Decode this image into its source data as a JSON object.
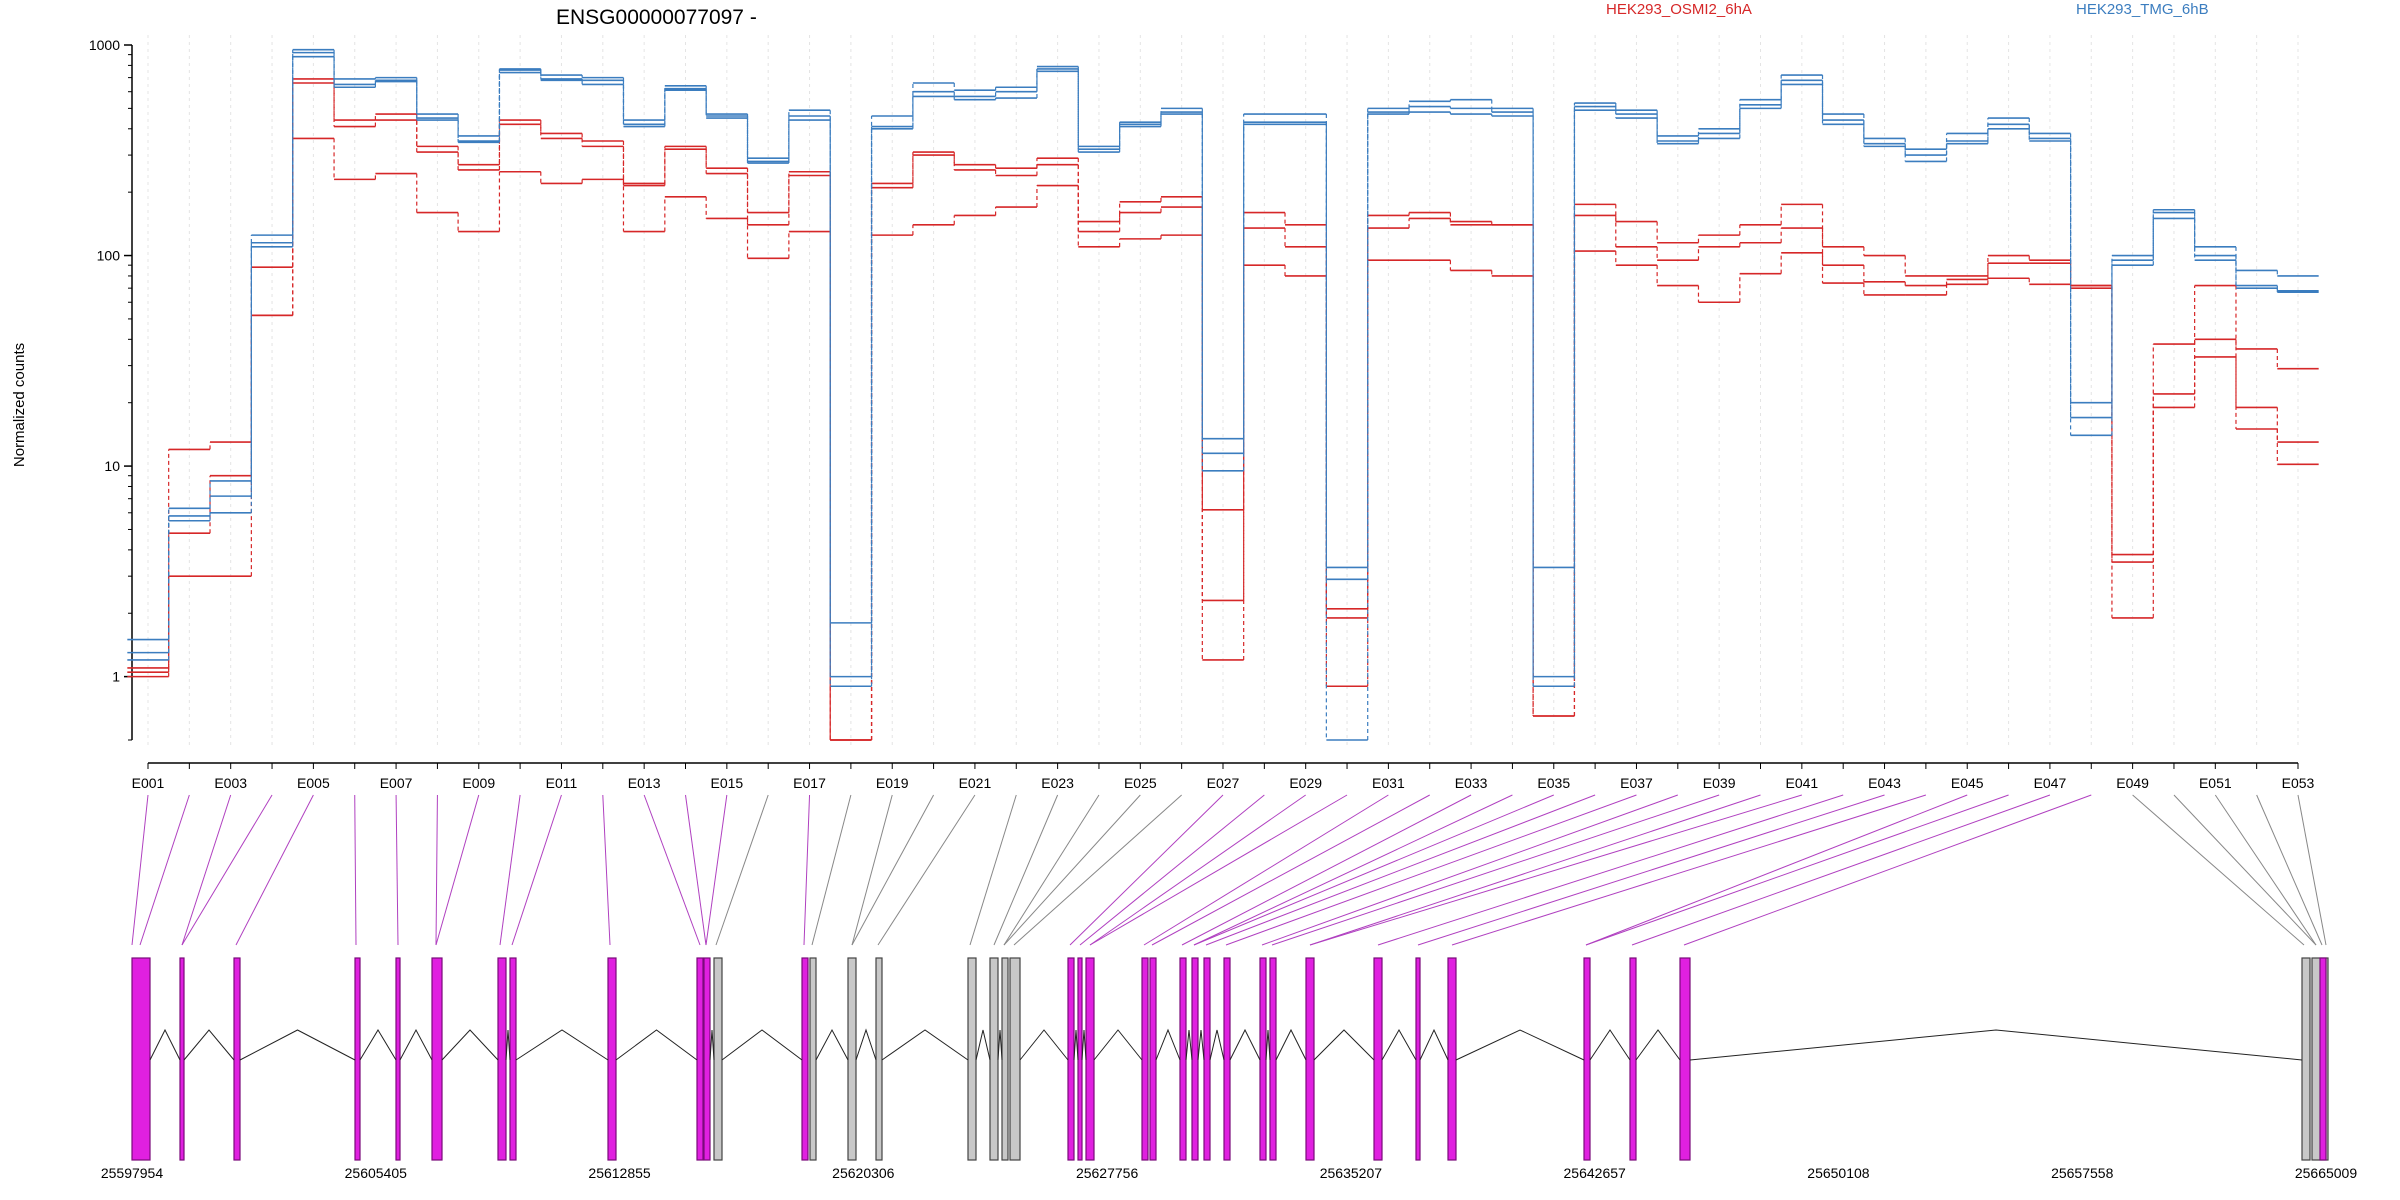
{
  "chart_data": {
    "type": "line",
    "title": "ENSG00000077097 -",
    "ylabel": "Normalized counts",
    "yscale": "log",
    "ylim": [
      0.5,
      1000
    ],
    "yticks": [
      1,
      10,
      100,
      1000
    ],
    "ytick_labels": [
      "1",
      "10",
      "100",
      "1000"
    ],
    "grid": "vertical dashed at each exon",
    "legend_position": "top",
    "colors": {
      "condition_a": "#d62728",
      "condition_b": "#3b7dbf",
      "exon_tested": "#e020e0",
      "exon_untested": "#c8c8c8"
    },
    "x_labels": [
      "E001",
      "E003",
      "E005",
      "E007",
      "E009",
      "E011",
      "E013",
      "E015",
      "E017",
      "E019",
      "E021",
      "E023",
      "E025",
      "E027",
      "E029",
      "E031",
      "E033",
      "E035",
      "E037",
      "E039",
      "E041",
      "E043",
      "E045",
      "E047",
      "E049",
      "E051",
      "E053"
    ],
    "exon_ids": [
      "E001",
      "E002",
      "E003",
      "E004",
      "E005",
      "E006",
      "E007",
      "E008",
      "E009",
      "E010",
      "E011",
      "E012",
      "E013",
      "E014",
      "E015",
      "E016",
      "E017",
      "E018",
      "E019",
      "E020",
      "E021",
      "E022",
      "E023",
      "E024",
      "E025",
      "E026",
      "E027",
      "E028",
      "E029",
      "E030",
      "E031",
      "E032",
      "E033",
      "E034",
      "E035",
      "E036",
      "E037",
      "E038",
      "E039",
      "E040",
      "E041",
      "E042",
      "E043",
      "E044",
      "E045",
      "E046",
      "E047",
      "E048",
      "E049",
      "E050",
      "E051",
      "E052",
      "E053"
    ],
    "series": [
      {
        "name": "HEK293_OSMI2_6hA",
        "condition": "a",
        "values": [
          1.1,
          12,
          13,
          52,
          690,
          440,
          470,
          330,
          270,
          440,
          380,
          350,
          220,
          330,
          260,
          160,
          250,
          0.5,
          220,
          310,
          270,
          260,
          290,
          145,
          180,
          190,
          6.2,
          160,
          140,
          2.1,
          155,
          160,
          145,
          140,
          0.9,
          175,
          145,
          115,
          125,
          140,
          175,
          110,
          100,
          80,
          80,
          100,
          95,
          72,
          3.8,
          38,
          72,
          36,
          29
        ]
      },
      {
        "name": "HEK293_OSMI2_6hA",
        "condition": "a",
        "values": [
          1.05,
          4.8,
          9,
          88,
          660,
          410,
          440,
          310,
          255,
          420,
          360,
          330,
          215,
          320,
          245,
          140,
          240,
          0.5,
          210,
          300,
          255,
          240,
          270,
          130,
          160,
          170,
          1.2,
          135,
          110,
          1.9,
          135,
          150,
          140,
          140,
          0.65,
          155,
          110,
          95,
          110,
          115,
          135,
          90,
          75,
          72,
          77,
          92,
          92,
          70,
          3.5,
          22,
          40,
          19,
          13
        ]
      },
      {
        "name": "HEK293_OSMI2_6hA",
        "condition": "a",
        "values": [
          1.0,
          3.0,
          3.0,
          52,
          360,
          230,
          245,
          160,
          130,
          250,
          220,
          230,
          130,
          190,
          150,
          97,
          130,
          0.5,
          125,
          140,
          155,
          170,
          215,
          110,
          120,
          125,
          2.3,
          90,
          80,
          0.9,
          95,
          95,
          85,
          80,
          0.65,
          105,
          90,
          72,
          60,
          82,
          103,
          74,
          65,
          65,
          73,
          78,
          73,
          72,
          1.9,
          19,
          33,
          15,
          10.2
        ]
      },
      {
        "name": "HEK293_TMG_6hB",
        "condition": "b",
        "values": [
          1.5,
          6.3,
          8.5,
          125,
          950,
          690,
          700,
          470,
          370,
          770,
          720,
          700,
          440,
          640,
          470,
          290,
          490,
          1.8,
          460,
          660,
          610,
          630,
          790,
          330,
          430,
          500,
          13.5,
          470,
          470,
          3.3,
          500,
          540,
          550,
          500,
          3.3,
          530,
          490,
          370,
          400,
          550,
          720,
          470,
          360,
          320,
          380,
          450,
          380,
          20,
          100,
          165,
          110,
          85,
          80
        ]
      },
      {
        "name": "HEK293_TMG_6hB",
        "condition": "b",
        "values": [
          1.3,
          5.8,
          7.2,
          110,
          920,
          650,
          680,
          450,
          350,
          760,
          690,
          680,
          420,
          620,
          460,
          280,
          460,
          1.0,
          410,
          600,
          570,
          600,
          770,
          320,
          420,
          480,
          9.5,
          430,
          430,
          2.9,
          480,
          510,
          500,
          480,
          1.0,
          510,
          470,
          350,
          380,
          520,
          680,
          440,
          340,
          300,
          350,
          420,
          360,
          14,
          95,
          160,
          100,
          72,
          68
        ]
      },
      {
        "name": "HEK293_TMG_6hB",
        "condition": "b",
        "values": [
          1.2,
          5.5,
          6.0,
          115,
          880,
          630,
          670,
          440,
          345,
          740,
          680,
          650,
          410,
          610,
          450,
          275,
          440,
          0.9,
          400,
          570,
          550,
          560,
          750,
          310,
          410,
          470,
          11.5,
          420,
          420,
          0.5,
          470,
          480,
          470,
          460,
          0.9,
          490,
          450,
          340,
          360,
          500,
          650,
          420,
          330,
          280,
          340,
          400,
          350,
          17,
          90,
          150,
          95,
          70,
          67
        ]
      }
    ],
    "gene_model": {
      "coordinate_labels": [
        "25597954",
        "25605405",
        "25612855",
        "25620306",
        "25627756",
        "25635207",
        "25642657",
        "25650108",
        "25657558",
        "25665009"
      ]
    }
  }
}
